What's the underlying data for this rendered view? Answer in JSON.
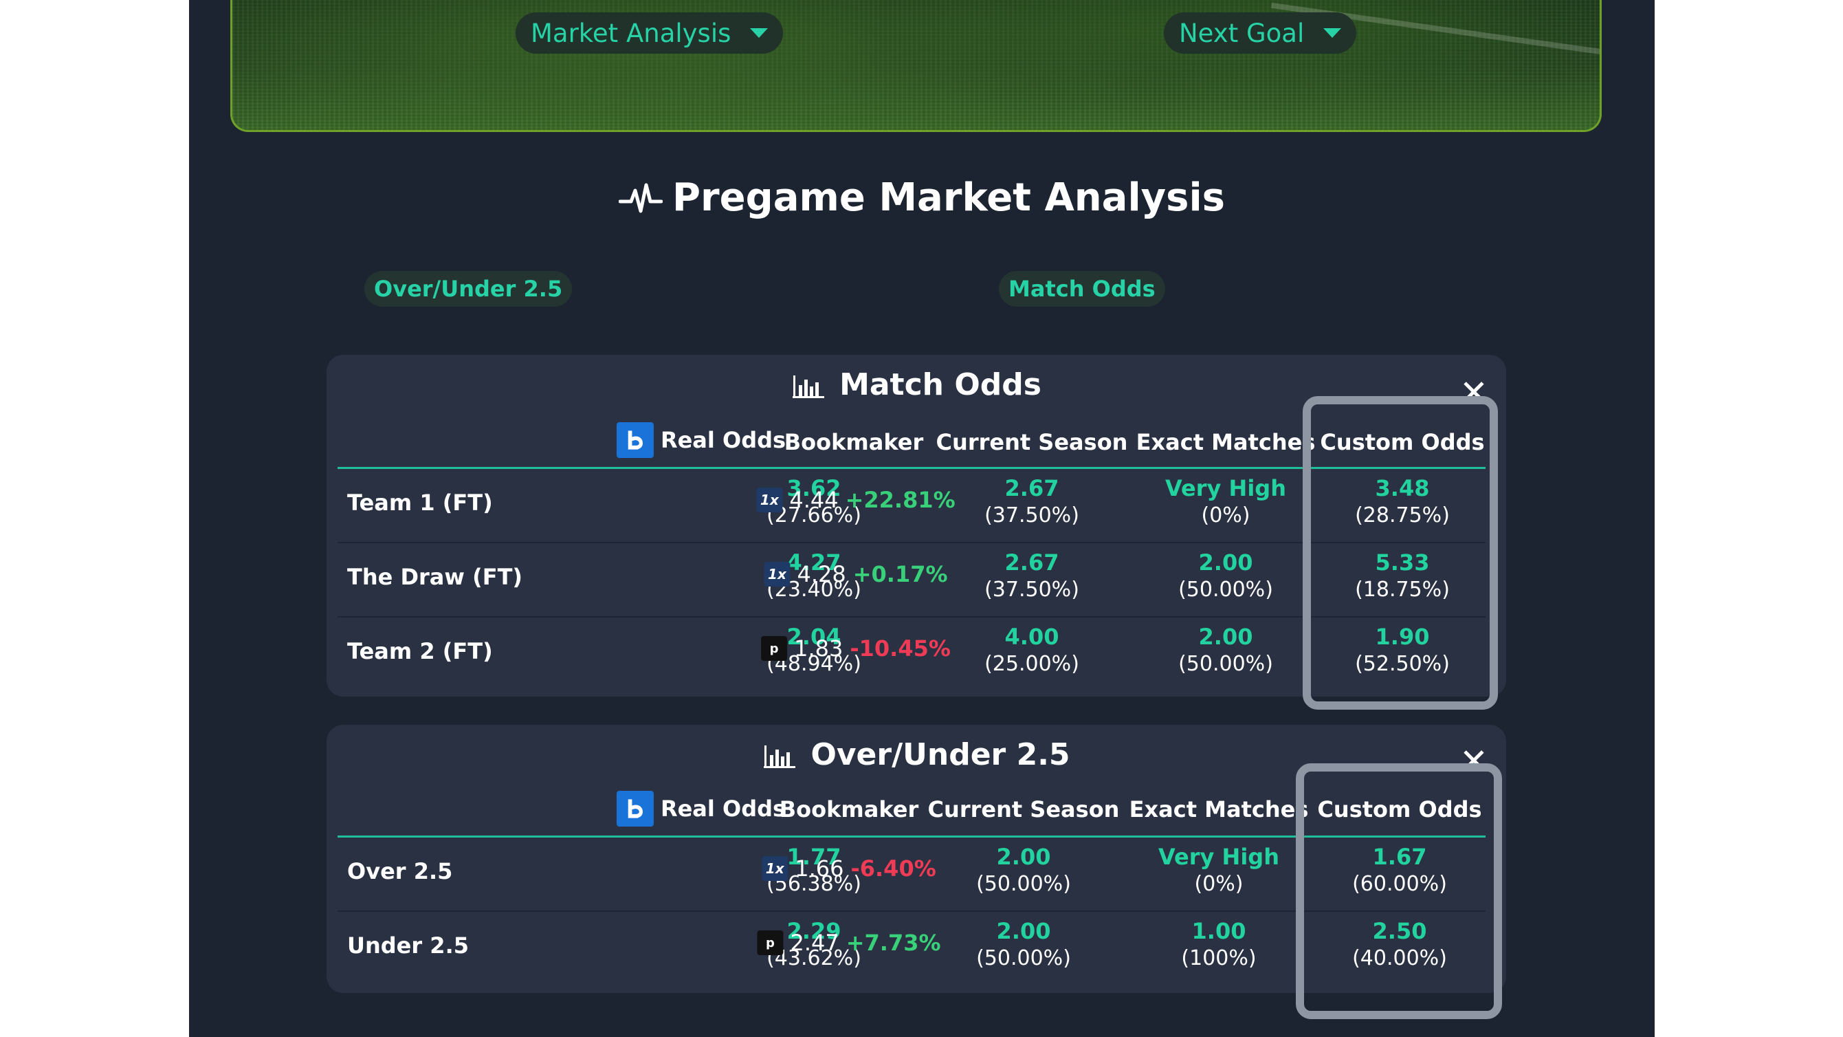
{
  "hero": {
    "dropdown_left": "Market Analysis",
    "dropdown_right": "Next Goal"
  },
  "page_title": "Pregame Market Analysis",
  "chips": [
    "Over/Under 2.5",
    "Match Odds"
  ],
  "headers": [
    "Real Odds",
    "Bookmaker",
    "Current Season",
    "Exact Matches",
    "Custom Odds"
  ],
  "match_odds": {
    "title": "Match Odds",
    "close_label": "✕",
    "rows": [
      {
        "label": "Team 1 (FT)",
        "real": "3.62",
        "real_pct": "(27.66%)",
        "bk_logo": "1x",
        "bk_odds": "4.44",
        "bk_diff": "+22.81%",
        "bk_dir": "pos",
        "season": "2.67",
        "season_pct": "(37.50%)",
        "exact": "Very High",
        "exact_pct": "(0%)",
        "custom": "3.48",
        "custom_pct": "(28.75%)"
      },
      {
        "label": "The Draw (FT)",
        "real": "4.27",
        "real_pct": "(23.40%)",
        "bk_logo": "1x",
        "bk_odds": "4.28",
        "bk_diff": "+0.17%",
        "bk_dir": "pos",
        "season": "2.67",
        "season_pct": "(37.50%)",
        "exact": "2.00",
        "exact_pct": "(50.00%)",
        "custom": "5.33",
        "custom_pct": "(18.75%)"
      },
      {
        "label": "Team 2 (FT)",
        "real": "2.04",
        "real_pct": "(48.94%)",
        "bk_logo": "p",
        "bk_odds": "1.83",
        "bk_diff": "-10.45%",
        "bk_dir": "neg",
        "season": "4.00",
        "season_pct": "(25.00%)",
        "exact": "2.00",
        "exact_pct": "(50.00%)",
        "custom": "1.90",
        "custom_pct": "(52.50%)"
      }
    ]
  },
  "over_under": {
    "title": "Over/Under 2.5",
    "close_label": "✕",
    "rows": [
      {
        "label": "Over 2.5",
        "real": "1.77",
        "real_pct": "(56.38%)",
        "bk_logo": "1x",
        "bk_odds": "1.66",
        "bk_diff": "-6.40%",
        "bk_dir": "neg",
        "season": "2.00",
        "season_pct": "(50.00%)",
        "exact": "Very High",
        "exact_pct": "(0%)",
        "custom": "1.67",
        "custom_pct": "(60.00%)"
      },
      {
        "label": "Under 2.5",
        "real": "2.29",
        "real_pct": "(43.62%)",
        "bk_logo": "p",
        "bk_odds": "2.47",
        "bk_diff": "+7.73%",
        "bk_dir": "pos",
        "season": "2.00",
        "season_pct": "(50.00%)",
        "exact": "1.00",
        "exact_pct": "(100%)",
        "custom": "2.50",
        "custom_pct": "(40.00%)"
      }
    ]
  },
  "colors": {
    "background": "#1c2331",
    "panel": "#293142",
    "accent": "#22d3a0",
    "positive": "#39d07a",
    "negative": "#ef3b55",
    "highlight_border": "#8f96a3"
  },
  "icons": [
    "pulse-icon",
    "bar-chart-icon",
    "close-icon",
    "caret-down-icon",
    "bookmaker-logo-icon"
  ]
}
